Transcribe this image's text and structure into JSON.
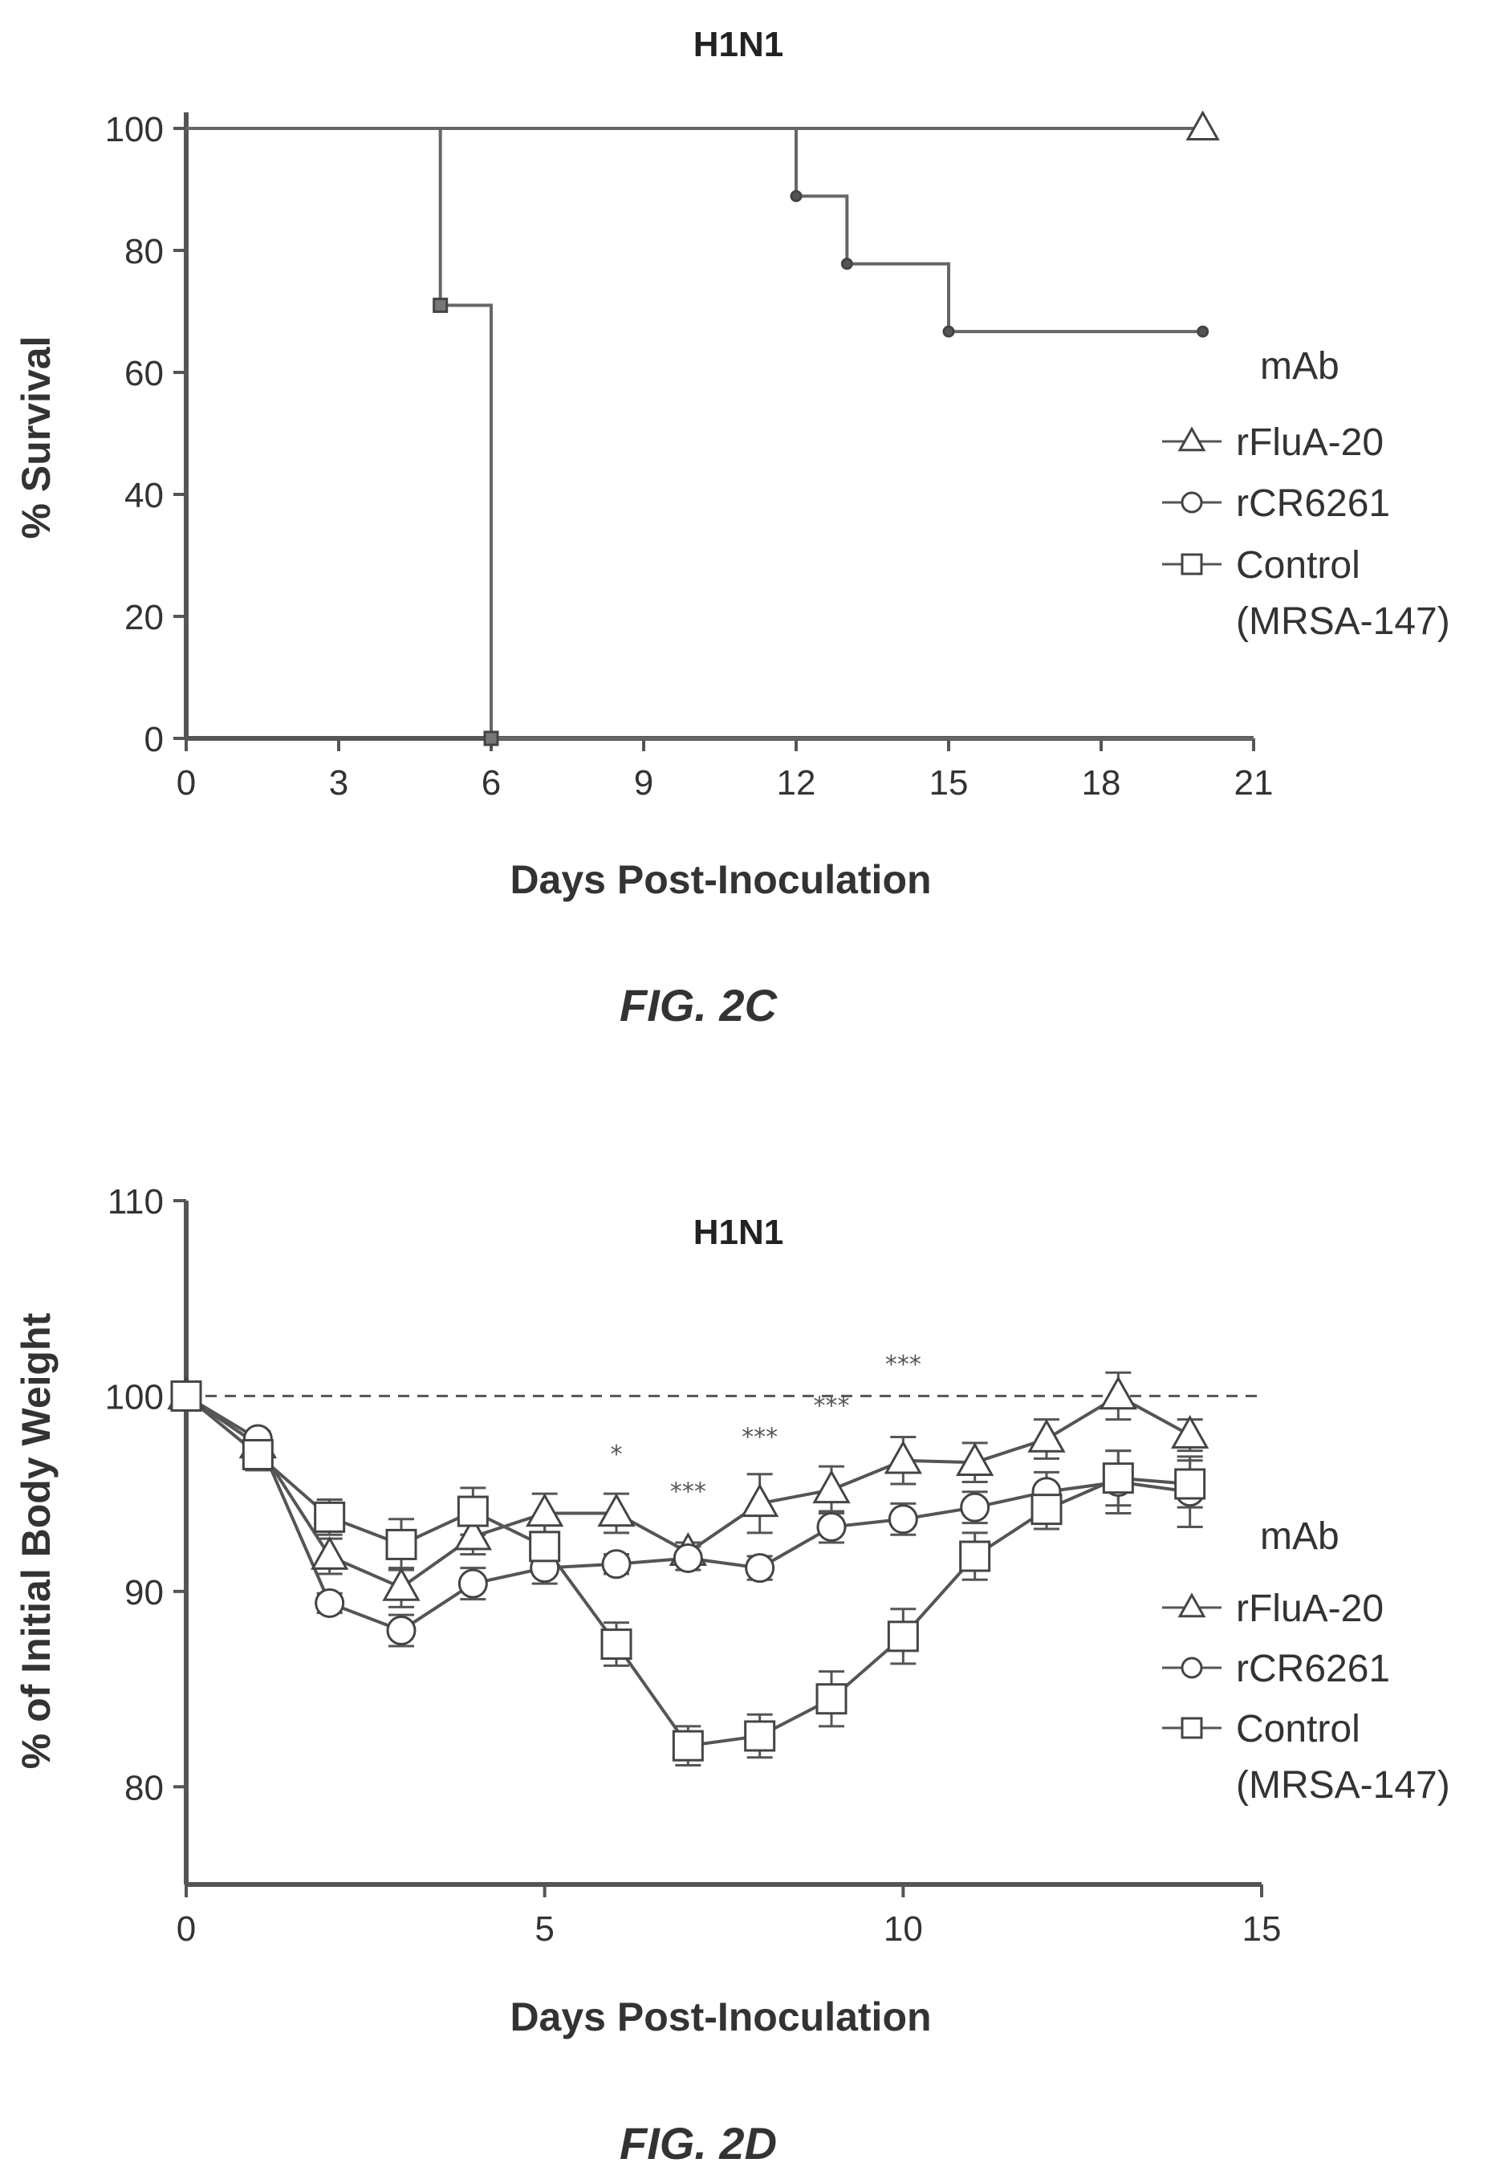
{
  "chart_data": [
    {
      "type": "line",
      "subtype": "kaplan-meier",
      "title": "H1N1",
      "xlabel": "Days Post-Inoculation",
      "ylabel": "% Survival",
      "xlim": [
        0,
        21
      ],
      "ylim": [
        0,
        100
      ],
      "xticks": [
        "0",
        "3",
        "6",
        "9",
        "12",
        "15",
        "18",
        "21"
      ],
      "yticks": [
        "0",
        "20",
        "40",
        "60",
        "80",
        "100"
      ],
      "grid": false,
      "legend_title": "mAb",
      "legend_position": "right",
      "series": [
        {
          "name": "rFluA-20",
          "marker": "triangle",
          "steps": [
            [
              0,
              100
            ],
            [
              20,
              100
            ]
          ],
          "marks": [
            [
              20,
              100
            ]
          ]
        },
        {
          "name": "rCR6261",
          "marker": "circle",
          "steps": [
            [
              0,
              100
            ],
            [
              12,
              100
            ],
            [
              12,
              88.9
            ],
            [
              13,
              88.9
            ],
            [
              13,
              77.8
            ],
            [
              15,
              77.8
            ],
            [
              15,
              66.7
            ],
            [
              20,
              66.7
            ]
          ],
          "marks": [
            [
              12,
              88.9
            ],
            [
              13,
              77.8
            ],
            [
              15,
              66.7
            ],
            [
              20,
              66.7
            ]
          ]
        },
        {
          "name": "Control",
          "name_line2": "(MRSA-147)",
          "marker": "square",
          "steps": [
            [
              0,
              100
            ],
            [
              5,
              100
            ],
            [
              5,
              71
            ],
            [
              6,
              71
            ],
            [
              6,
              0
            ],
            [
              21,
              0
            ]
          ],
          "marks": [
            [
              5,
              71
            ],
            [
              6,
              0
            ]
          ]
        }
      ],
      "caption": "FIG. 2C"
    },
    {
      "type": "line",
      "title": "H1N1",
      "xlabel": "Days Post-Inoculation",
      "ylabel": "% of Initial Body Weight",
      "xlim": [
        0,
        15
      ],
      "ylim": [
        75,
        110
      ],
      "xticks": [
        "0",
        "5",
        "10",
        "15"
      ],
      "yticks": [
        "80",
        "90",
        "100",
        "110"
      ],
      "reference_line": 100,
      "grid": false,
      "legend_title": "mAb",
      "legend_position": "right",
      "series": [
        {
          "name": "rFluA-20",
          "marker": "triangle",
          "x": [
            0,
            1,
            2,
            3,
            4,
            5,
            6,
            7,
            8,
            9,
            10,
            11,
            12,
            13,
            14
          ],
          "y": [
            100,
            97.5,
            91.8,
            90.2,
            92.8,
            94,
            94,
            92,
            94.5,
            95.2,
            96.7,
            96.6,
            97.8,
            100,
            98
          ],
          "err": [
            0,
            0.5,
            0.9,
            1.0,
            0.9,
            1.0,
            1.0,
            0.5,
            1.5,
            1.2,
            1.2,
            1.0,
            1.0,
            1.2,
            0.8
          ]
        },
        {
          "name": "rCR6261",
          "marker": "circle",
          "x": [
            0,
            1,
            2,
            3,
            4,
            5,
            6,
            7,
            8,
            9,
            10,
            11,
            12,
            13,
            14
          ],
          "y": [
            100,
            97.8,
            89.4,
            88,
            90.4,
            91.2,
            91.4,
            91.7,
            91.2,
            93.3,
            93.7,
            94.3,
            95.1,
            95.6,
            95.1
          ],
          "err": [
            0,
            0.4,
            0.5,
            0.8,
            0.8,
            0.8,
            0.5,
            0.6,
            0.6,
            0.8,
            0.8,
            0.8,
            1.0,
            1.6,
            1.8
          ]
        },
        {
          "name": "Control",
          "name_line2": "(MRSA-147)",
          "marker": "square",
          "x": [
            0,
            1,
            2,
            3,
            4,
            5,
            6,
            7,
            8,
            9,
            10,
            11,
            12,
            13,
            14
          ],
          "y": [
            100,
            97,
            93.8,
            92.4,
            94.1,
            92.3,
            87.3,
            82.1,
            82.6,
            84.5,
            87.7,
            91.8,
            94.2,
            95.8,
            95.5
          ],
          "err": [
            0,
            0.8,
            0.9,
            1.3,
            1.2,
            1.2,
            1.1,
            1.0,
            1.1,
            1.4,
            1.4,
            1.2,
            1.0,
            1.4,
            1.2
          ]
        }
      ],
      "annotations": [
        {
          "x": 6,
          "y": 96.6,
          "text": "*"
        },
        {
          "x": 7,
          "y": 94.7,
          "text": "***"
        },
        {
          "x": 8,
          "y": 97.5,
          "text": "***"
        },
        {
          "x": 9,
          "y": 99.1,
          "text": "***"
        },
        {
          "x": 10,
          "y": 101.2,
          "text": "***"
        }
      ],
      "caption": "FIG. 2D"
    }
  ]
}
